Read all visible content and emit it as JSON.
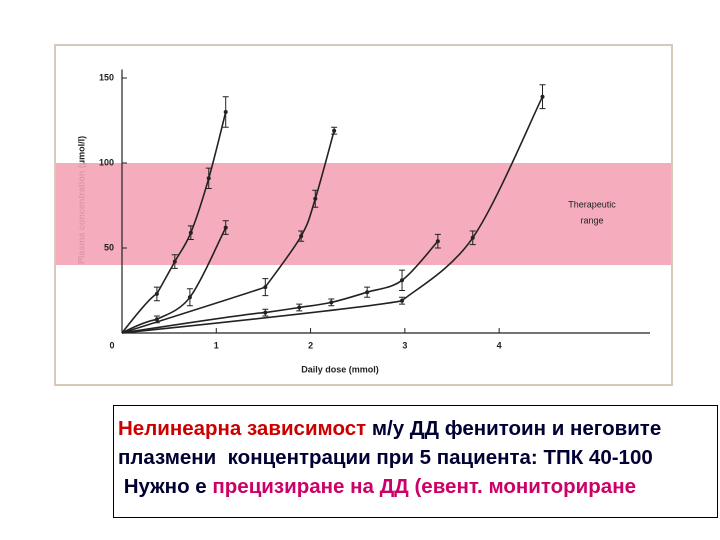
{
  "chart_data": {
    "type": "line",
    "x_label": "Daily dose (mmol)",
    "y_label": "Plasma concentration (µmol/l)",
    "xlim": [
      0,
      5.6
    ],
    "ylim": [
      0,
      155
    ],
    "xticks": [
      0,
      1,
      2,
      3,
      4
    ],
    "yticks": [
      50,
      100,
      150
    ],
    "band": [
      40,
      100
    ],
    "band_color": "#f4a3b6",
    "annotation": [
      "Therapeutic",
      "range"
    ],
    "line_color": "#222222",
    "series": [
      {
        "x": [
          0.37,
          0.56,
          0.73,
          0.92,
          1.1
        ],
        "values": [
          23,
          42,
          59,
          91,
          130
        ],
        "errors": [
          4,
          4,
          4,
          6,
          9
        ]
      },
      {
        "x": [
          0.37,
          0.72,
          1.1
        ],
        "values": [
          8,
          21,
          62
        ],
        "errors": [
          2,
          5,
          4
        ]
      },
      {
        "x": [
          1.52,
          1.9,
          2.05,
          2.25
        ],
        "values": [
          27,
          57,
          79,
          119
        ],
        "errors": [
          5,
          3,
          5,
          2
        ]
      },
      {
        "x": [
          1.52,
          1.88,
          2.22,
          2.6,
          2.97,
          3.35
        ],
        "values": [
          12,
          15,
          18,
          24,
          31,
          54
        ],
        "errors": [
          2,
          2,
          2,
          3,
          6,
          4
        ]
      },
      {
        "x": [
          2.97,
          3.72,
          4.46
        ],
        "values": [
          19,
          56,
          139
        ],
        "errors": [
          2,
          4,
          7
        ]
      }
    ]
  },
  "caption": {
    "lines": [
      [
        {
          "text": "Нелинеарна зависимост",
          "color": "#cc0000"
        },
        {
          "text": " м/у ДД фенитоин и неговите",
          "color": "#000033"
        }
      ],
      [
        {
          "text": "плазмени  концентрации при 5 пациента: ТПК 40-100",
          "color": "#000033"
        }
      ],
      [
        {
          "text": " Нужно е ",
          "color": "#000033"
        },
        {
          "text": "прецизиране на ДД (евент. мониториране",
          "color": "#cc0066"
        }
      ]
    ]
  }
}
